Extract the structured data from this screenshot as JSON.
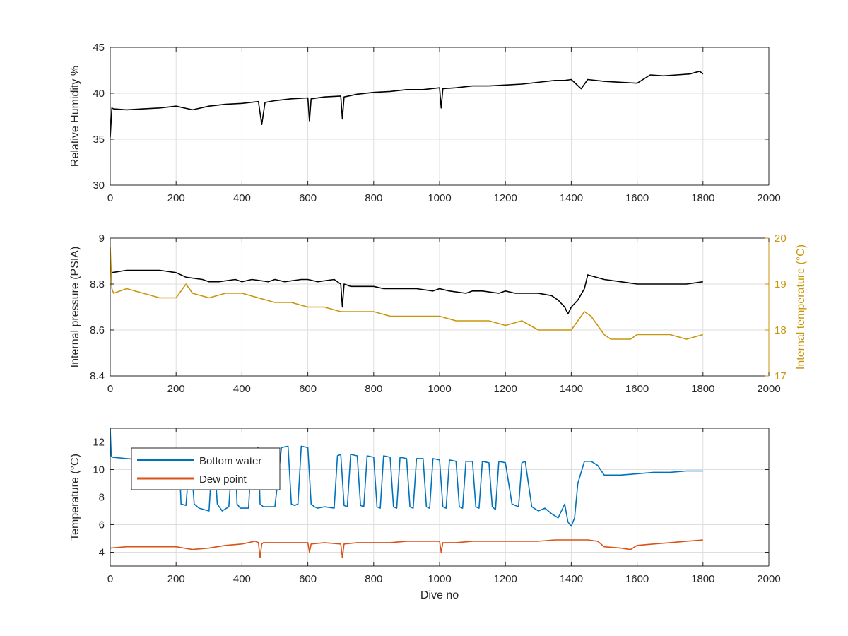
{
  "chart_data": [
    {
      "type": "line",
      "xlabel": "",
      "ylabel": "Relative Humidity %",
      "xlim": [
        0,
        2000
      ],
      "ylim": [
        30,
        45
      ],
      "xticks": [
        "0",
        "200",
        "400",
        "600",
        "800",
        "1000",
        "1200",
        "1400",
        "1600",
        "1800",
        "2000"
      ],
      "yticks": [
        "30",
        "35",
        "40",
        "45"
      ],
      "grid": true,
      "series": [
        {
          "color": "#000000",
          "x": [
            0,
            5,
            10,
            50,
            100,
            150,
            200,
            250,
            300,
            350,
            400,
            450,
            460,
            470,
            500,
            550,
            600,
            605,
            610,
            650,
            700,
            705,
            710,
            750,
            800,
            850,
            900,
            950,
            1000,
            1005,
            1010,
            1050,
            1100,
            1150,
            1200,
            1250,
            1300,
            1350,
            1380,
            1400,
            1430,
            1450,
            1500,
            1550,
            1600,
            1640,
            1680,
            1720,
            1760,
            1790,
            1800
          ],
          "y": [
            35.2,
            38.4,
            38.3,
            38.2,
            38.3,
            38.4,
            38.6,
            38.2,
            38.6,
            38.8,
            38.9,
            39.1,
            36.6,
            39.0,
            39.2,
            39.4,
            39.5,
            37.0,
            39.4,
            39.6,
            39.7,
            37.2,
            39.6,
            39.9,
            40.1,
            40.2,
            40.4,
            40.4,
            40.6,
            38.4,
            40.5,
            40.6,
            40.8,
            40.8,
            40.9,
            41.0,
            41.2,
            41.4,
            41.4,
            41.5,
            40.5,
            41.5,
            41.3,
            41.2,
            41.1,
            42.0,
            41.9,
            42.0,
            42.1,
            42.4,
            42.1
          ]
        }
      ]
    },
    {
      "type": "line",
      "xlabel": "",
      "ylabel": "Internal pressure (PSIA)",
      "ylabel_right": "Internal temperature (°C)",
      "xlim": [
        0,
        2000
      ],
      "ylim": [
        8.4,
        9
      ],
      "ylim_right": [
        17,
        20
      ],
      "xticks": [
        "0",
        "200",
        "400",
        "600",
        "800",
        "1000",
        "1200",
        "1400",
        "1600",
        "1800",
        "2000"
      ],
      "yticks": [
        "8.4",
        "8.6",
        "8.8",
        "9"
      ],
      "yticks_right": [
        "17",
        "18",
        "19",
        "20"
      ],
      "grid": true,
      "series": [
        {
          "axis": "left",
          "color": "#000000",
          "x": [
            0,
            5,
            50,
            100,
            150,
            200,
            230,
            280,
            300,
            330,
            380,
            400,
            430,
            480,
            500,
            530,
            580,
            600,
            630,
            680,
            700,
            705,
            710,
            730,
            780,
            800,
            830,
            880,
            900,
            930,
            980,
            1000,
            1030,
            1080,
            1100,
            1130,
            1180,
            1200,
            1230,
            1280,
            1300,
            1340,
            1360,
            1380,
            1390,
            1400,
            1420,
            1440,
            1450,
            1500,
            1550,
            1600,
            1650,
            1700,
            1750,
            1800
          ],
          "y": [
            8.88,
            8.85,
            8.86,
            8.86,
            8.86,
            8.85,
            8.83,
            8.82,
            8.81,
            8.81,
            8.82,
            8.81,
            8.82,
            8.81,
            8.82,
            8.81,
            8.82,
            8.82,
            8.81,
            8.82,
            8.8,
            8.7,
            8.8,
            8.79,
            8.79,
            8.79,
            8.78,
            8.78,
            8.78,
            8.78,
            8.77,
            8.78,
            8.77,
            8.76,
            8.77,
            8.77,
            8.76,
            8.77,
            8.76,
            8.76,
            8.76,
            8.75,
            8.73,
            8.7,
            8.67,
            8.7,
            8.73,
            8.78,
            8.84,
            8.82,
            8.81,
            8.8,
            8.8,
            8.8,
            8.8,
            8.81
          ]
        },
        {
          "axis": "right",
          "color": "#C8960C",
          "x": [
            0,
            5,
            10,
            50,
            100,
            150,
            200,
            230,
            250,
            300,
            350,
            400,
            450,
            500,
            550,
            600,
            650,
            700,
            750,
            800,
            850,
            900,
            950,
            1000,
            1050,
            1100,
            1150,
            1200,
            1250,
            1300,
            1350,
            1400,
            1420,
            1440,
            1460,
            1480,
            1500,
            1520,
            1550,
            1580,
            1600,
            1650,
            1700,
            1750,
            1800
          ],
          "y": [
            19.8,
            18.9,
            18.8,
            18.9,
            18.8,
            18.7,
            18.7,
            19.0,
            18.8,
            18.7,
            18.8,
            18.8,
            18.7,
            18.6,
            18.6,
            18.5,
            18.5,
            18.4,
            18.4,
            18.4,
            18.3,
            18.3,
            18.3,
            18.3,
            18.2,
            18.2,
            18.2,
            18.1,
            18.2,
            18.0,
            18.0,
            18.0,
            18.2,
            18.4,
            18.3,
            18.1,
            17.9,
            17.8,
            17.8,
            17.8,
            17.9,
            17.9,
            17.9,
            17.8,
            17.9
          ]
        }
      ]
    },
    {
      "type": "line",
      "xlabel": "Dive no",
      "ylabel": "Temperature (°C)",
      "xlim": [
        0,
        2000
      ],
      "ylim": [
        3,
        13
      ],
      "xticks": [
        "0",
        "200",
        "400",
        "600",
        "800",
        "1000",
        "1200",
        "1400",
        "1600",
        "1800",
        "2000"
      ],
      "yticks": [
        "4",
        "6",
        "8",
        "10",
        "12"
      ],
      "grid": true,
      "legend": {
        "position": "top-left"
      },
      "series": [
        {
          "name": "Bottom water",
          "color": "#0072BD",
          "x": [
            0,
            3,
            6,
            50,
            100,
            150,
            200,
            210,
            215,
            230,
            240,
            245,
            255,
            270,
            300,
            310,
            315,
            325,
            340,
            360,
            370,
            380,
            385,
            395,
            420,
            430,
            440,
            450,
            455,
            465,
            480,
            500,
            520,
            540,
            550,
            560,
            570,
            580,
            600,
            610,
            620,
            630,
            650,
            680,
            690,
            700,
            710,
            720,
            730,
            750,
            760,
            770,
            780,
            800,
            810,
            820,
            830,
            850,
            860,
            870,
            880,
            900,
            910,
            920,
            930,
            950,
            960,
            970,
            980,
            1000,
            1010,
            1020,
            1030,
            1050,
            1060,
            1070,
            1080,
            1100,
            1110,
            1120,
            1130,
            1150,
            1160,
            1170,
            1180,
            1200,
            1220,
            1240,
            1250,
            1260,
            1280,
            1300,
            1320,
            1340,
            1360,
            1380,
            1390,
            1400,
            1410,
            1420,
            1440,
            1460,
            1480,
            1500,
            1550,
            1600,
            1650,
            1700,
            1750,
            1800
          ],
          "y": [
            13.0,
            11.0,
            10.9,
            10.8,
            10.7,
            10.6,
            10.6,
            10.5,
            7.5,
            7.4,
            10.5,
            10.8,
            7.5,
            7.2,
            7.0,
            11.0,
            11.2,
            7.5,
            7.0,
            7.3,
            10.8,
            11.0,
            7.5,
            7.2,
            7.2,
            11.3,
            11.5,
            11.6,
            7.5,
            7.3,
            7.3,
            7.3,
            11.6,
            11.7,
            7.5,
            7.4,
            7.5,
            11.7,
            11.6,
            7.5,
            7.3,
            7.2,
            7.3,
            7.2,
            11.0,
            11.1,
            7.4,
            7.3,
            11.1,
            11.0,
            7.4,
            7.3,
            11.0,
            10.9,
            7.3,
            7.2,
            11.0,
            10.9,
            7.3,
            7.2,
            10.9,
            10.8,
            7.3,
            7.2,
            10.8,
            10.8,
            7.3,
            7.2,
            10.8,
            10.7,
            7.3,
            7.2,
            10.7,
            10.6,
            7.3,
            7.2,
            10.6,
            10.6,
            7.3,
            7.2,
            10.6,
            10.5,
            7.3,
            7.1,
            10.6,
            10.5,
            7.5,
            7.3,
            10.5,
            10.6,
            7.3,
            7.0,
            7.2,
            6.8,
            6.5,
            7.5,
            6.2,
            5.9,
            6.5,
            9.0,
            10.6,
            10.6,
            10.3,
            9.6,
            9.6,
            9.7,
            9.8,
            9.8,
            9.9,
            9.9
          ]
        },
        {
          "name": "Dew point",
          "color": "#D95319",
          "x": [
            0,
            50,
            100,
            150,
            200,
            250,
            300,
            350,
            400,
            440,
            450,
            455,
            460,
            465,
            500,
            550,
            600,
            605,
            610,
            650,
            700,
            705,
            710,
            750,
            800,
            850,
            900,
            950,
            1000,
            1005,
            1010,
            1050,
            1100,
            1150,
            1200,
            1250,
            1300,
            1350,
            1400,
            1450,
            1480,
            1500,
            1550,
            1580,
            1600,
            1650,
            1700,
            1750,
            1800
          ],
          "y": [
            4.3,
            4.4,
            4.4,
            4.4,
            4.4,
            4.2,
            4.3,
            4.5,
            4.6,
            4.8,
            4.7,
            3.6,
            4.6,
            4.7,
            4.7,
            4.7,
            4.7,
            4.0,
            4.6,
            4.7,
            4.6,
            3.6,
            4.6,
            4.7,
            4.7,
            4.7,
            4.8,
            4.8,
            4.8,
            4.0,
            4.7,
            4.7,
            4.8,
            4.8,
            4.8,
            4.8,
            4.8,
            4.9,
            4.9,
            4.9,
            4.8,
            4.4,
            4.3,
            4.2,
            4.5,
            4.6,
            4.7,
            4.8,
            4.9
          ]
        }
      ]
    }
  ]
}
